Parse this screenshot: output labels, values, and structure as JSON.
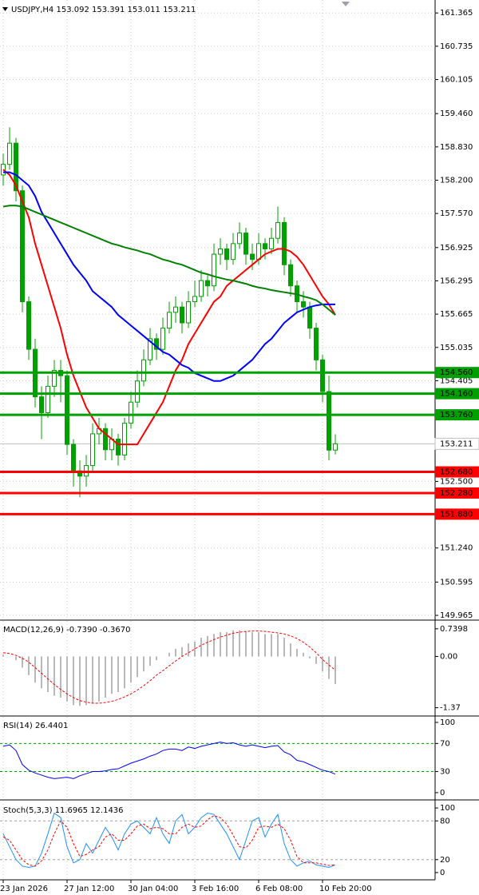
{
  "chart_data": [
    {
      "type": "candlestick",
      "title": "USDJPY,H4  153.092 153.391 153.011 153.211",
      "ylim": [
        149.89,
        161.61
      ],
      "yticks": [
        161.365,
        160.735,
        160.105,
        {
          "value": 159.46,
          "label": "159.460"
        },
        {
          "value": 158.83,
          "label": "158.830"
        },
        {
          "value": 158.2,
          "label": "158.200"
        },
        {
          "value": 157.57,
          "label": "157.570"
        },
        156.925,
        156.295,
        155.665,
        155.035,
        154.405,
        {
          "value": 152.5,
          "label": "152.500"
        },
        {
          "value": 151.24,
          "label": "151.240"
        },
        150.595,
        149.965
      ],
      "grid": true,
      "up_color": "#00a000",
      "down_color": "#00a000",
      "ohlc": [
        [
          158.3,
          158.7,
          158.1,
          158.5
        ],
        [
          158.5,
          159.2,
          158.4,
          158.9
        ],
        [
          158.9,
          159.0,
          157.8,
          158.0
        ],
        [
          158.0,
          158.1,
          155.7,
          155.9
        ],
        [
          155.9,
          156.0,
          154.8,
          155.0
        ],
        [
          155.0,
          155.2,
          153.9,
          154.1
        ],
        [
          154.1,
          154.3,
          153.3,
          153.8
        ],
        [
          153.8,
          154.5,
          153.7,
          154.3
        ],
        [
          154.3,
          154.8,
          154.1,
          154.6
        ],
        [
          154.6,
          154.8,
          154.0,
          154.5
        ],
        [
          154.5,
          154.6,
          153.0,
          153.2
        ],
        [
          153.2,
          153.3,
          152.4,
          152.7
        ],
        [
          152.7,
          152.9,
          152.2,
          152.6
        ],
        [
          152.6,
          153.0,
          152.4,
          152.8
        ],
        [
          152.8,
          153.6,
          152.7,
          153.4
        ],
        [
          153.4,
          153.7,
          153.2,
          153.5
        ],
        [
          153.5,
          153.6,
          152.9,
          153.1
        ],
        [
          153.1,
          153.5,
          152.9,
          153.3
        ],
        [
          153.3,
          153.4,
          152.8,
          153.0
        ],
        [
          153.0,
          153.7,
          152.9,
          153.6
        ],
        [
          153.6,
          154.2,
          153.5,
          154.0
        ],
        [
          154.0,
          154.6,
          153.9,
          154.4
        ],
        [
          154.4,
          155.0,
          154.3,
          154.8
        ],
        [
          154.8,
          155.4,
          154.7,
          155.2
        ],
        [
          155.2,
          155.3,
          154.8,
          155.0
        ],
        [
          155.0,
          155.6,
          154.9,
          155.4
        ],
        [
          155.4,
          155.9,
          155.3,
          155.7
        ],
        [
          155.7,
          156.0,
          155.5,
          155.8
        ],
        [
          155.8,
          155.9,
          155.3,
          155.5
        ],
        [
          155.5,
          156.1,
          155.4,
          155.9
        ],
        [
          155.9,
          156.3,
          155.8,
          156.0
        ],
        [
          156.0,
          156.5,
          155.9,
          156.3
        ],
        [
          156.3,
          156.4,
          156.0,
          156.2
        ],
        [
          156.2,
          157.0,
          156.1,
          156.8
        ],
        [
          156.8,
          157.1,
          156.6,
          156.9
        ],
        [
          156.9,
          157.0,
          156.5,
          156.7
        ],
        [
          156.7,
          157.2,
          156.6,
          157.0
        ],
        [
          157.0,
          157.4,
          156.9,
          157.2
        ],
        [
          157.2,
          157.3,
          156.6,
          156.8
        ],
        [
          156.8,
          157.0,
          156.5,
          156.7
        ],
        [
          156.7,
          157.2,
          156.6,
          157.0
        ],
        [
          157.0,
          157.1,
          156.7,
          156.9
        ],
        [
          156.9,
          157.3,
          156.8,
          157.1
        ],
        [
          157.1,
          157.7,
          157.0,
          157.4
        ],
        [
          157.4,
          157.5,
          156.4,
          156.6
        ],
        [
          156.6,
          156.7,
          156.0,
          156.2
        ],
        [
          156.2,
          156.3,
          155.7,
          155.9
        ],
        [
          155.9,
          156.1,
          155.6,
          155.8
        ],
        [
          155.8,
          155.9,
          155.2,
          155.4
        ],
        [
          155.4,
          155.5,
          154.6,
          154.8
        ],
        [
          154.8,
          154.9,
          154.0,
          154.2
        ],
        [
          154.2,
          154.5,
          152.9,
          153.092
        ],
        [
          153.092,
          153.391,
          153.011,
          153.211
        ]
      ],
      "lines": [
        {
          "color": "#ff0000",
          "values": [
            158.4,
            158.3,
            158.1,
            157.8,
            157.5,
            157.0,
            156.6,
            156.2,
            155.8,
            155.4,
            154.9,
            154.5,
            154.2,
            153.9,
            153.7,
            153.5,
            153.4,
            153.3,
            153.2,
            153.2,
            153.2,
            153.2,
            153.4,
            153.6,
            153.8,
            154.0,
            154.3,
            154.6,
            154.8,
            155.1,
            155.3,
            155.5,
            155.7,
            155.9,
            156.0,
            156.2,
            156.3,
            156.4,
            156.5,
            156.6,
            156.7,
            156.8,
            156.85,
            156.9,
            156.9,
            156.85,
            156.75,
            156.6,
            156.4,
            156.2,
            156.0,
            155.85,
            155.65
          ]
        },
        {
          "color": "#0000ff",
          "values": [
            158.35,
            158.35,
            158.3,
            158.2,
            158.1,
            157.9,
            157.6,
            157.4,
            157.2,
            157.0,
            156.8,
            156.6,
            156.45,
            156.3,
            156.1,
            156.0,
            155.9,
            155.8,
            155.65,
            155.55,
            155.45,
            155.35,
            155.25,
            155.15,
            155.05,
            154.95,
            154.9,
            154.8,
            154.7,
            154.65,
            154.55,
            154.5,
            154.45,
            154.4,
            154.4,
            154.45,
            154.5,
            154.6,
            154.7,
            154.8,
            154.95,
            155.1,
            155.2,
            155.35,
            155.5,
            155.6,
            155.7,
            155.75,
            155.8,
            155.83,
            155.85,
            155.85,
            155.85
          ]
        },
        {
          "color": "#008000",
          "values": [
            157.7,
            157.72,
            157.72,
            157.7,
            157.65,
            157.6,
            157.55,
            157.5,
            157.45,
            157.4,
            157.35,
            157.3,
            157.25,
            157.2,
            157.15,
            157.1,
            157.05,
            157.0,
            156.97,
            156.93,
            156.9,
            156.87,
            156.83,
            156.8,
            156.75,
            156.7,
            156.67,
            156.63,
            156.6,
            156.55,
            156.5,
            156.45,
            156.42,
            156.38,
            156.35,
            156.32,
            156.3,
            156.27,
            156.24,
            156.2,
            156.17,
            156.15,
            156.12,
            156.1,
            156.08,
            156.06,
            156.04,
            156.0,
            155.97,
            155.93,
            155.85,
            155.75,
            155.65
          ]
        }
      ],
      "levels": [
        {
          "value": 154.56,
          "label": "154.560",
          "color": "#00a000"
        },
        {
          "value": 154.16,
          "label": "154.160",
          "color": "#00a000"
        },
        {
          "value": 153.76,
          "label": "153.760",
          "color": "#00a000"
        },
        {
          "value": 152.68,
          "label": "152.680",
          "color": "#ff0000"
        },
        {
          "value": 152.28,
          "label": "152.280",
          "color": "#ff0000"
        },
        {
          "value": 151.88,
          "label": "151.880",
          "color": "#ff0000"
        }
      ],
      "last": {
        "value": 153.211,
        "label": "153.211",
        "color": "#c0c0c0"
      }
    },
    {
      "type": "macd",
      "title": "MACD(12,26,9) -0.7390 -0.3670",
      "ylim": [
        -1.57,
        0.95
      ],
      "yticks": [
        0.7398,
        {
          "value": 0,
          "label": "0.00"
        },
        -1.37
      ],
      "histogram": {
        "color": "#b8b8b8",
        "values": [
          0.05,
          0.0,
          -0.1,
          -0.3,
          -0.5,
          -0.7,
          -0.85,
          -0.95,
          -1.05,
          -1.1,
          -1.2,
          -1.3,
          -1.32,
          -1.3,
          -1.25,
          -1.2,
          -1.1,
          -1.0,
          -0.95,
          -0.85,
          -0.7,
          -0.55,
          -0.4,
          -0.25,
          -0.1,
          0.0,
          0.1,
          0.2,
          0.25,
          0.35,
          0.4,
          0.5,
          0.55,
          0.6,
          0.65,
          0.65,
          0.7,
          0.7,
          0.68,
          0.65,
          0.65,
          0.6,
          0.6,
          0.6,
          0.5,
          0.35,
          0.2,
          0.1,
          -0.05,
          -0.2,
          -0.4,
          -0.6,
          -0.739
        ]
      },
      "signal": {
        "color": "#ff0000",
        "values": [
          0.1,
          0.08,
          0.03,
          -0.05,
          -0.15,
          -0.3,
          -0.45,
          -0.6,
          -0.75,
          -0.88,
          -1.0,
          -1.1,
          -1.18,
          -1.22,
          -1.25,
          -1.25,
          -1.23,
          -1.2,
          -1.15,
          -1.08,
          -1.0,
          -0.9,
          -0.78,
          -0.65,
          -0.5,
          -0.38,
          -0.25,
          -0.12,
          0.0,
          0.1,
          0.2,
          0.3,
          0.38,
          0.45,
          0.52,
          0.57,
          0.62,
          0.65,
          0.67,
          0.68,
          0.68,
          0.67,
          0.65,
          0.63,
          0.6,
          0.55,
          0.48,
          0.38,
          0.25,
          0.1,
          -0.08,
          -0.23,
          -0.367
        ]
      }
    },
    {
      "type": "rsi",
      "title": "RSI(14) 26.4401",
      "ylim": [
        -9.2,
        108
      ],
      "yticks": [
        100,
        70,
        30,
        0
      ],
      "levels": [
        70,
        30
      ],
      "level_color": "#00a000",
      "main": {
        "color": "#0000ff",
        "values": [
          66,
          68,
          60,
          40,
          32,
          28,
          25,
          22,
          20,
          21,
          22,
          20,
          24,
          27,
          30,
          30,
          31,
          33,
          34,
          38,
          42,
          45,
          48,
          52,
          55,
          60,
          62,
          62,
          60,
          65,
          63,
          66,
          68,
          70,
          72,
          70,
          71,
          68,
          66,
          68,
          66,
          64,
          66,
          67,
          58,
          54,
          46,
          44,
          40,
          36,
          32,
          30,
          26.4401
        ]
      }
    },
    {
      "type": "stochastic",
      "title": "Stoch(5,3,3) 11.6965 12.1436",
      "ylim": [
        -10,
        111.25
      ],
      "yticks": [
        100,
        80,
        20,
        0
      ],
      "levels": [
        80,
        20
      ],
      "level_color": "#a0a0a0",
      "main": {
        "color": "#1e90ff",
        "values": [
          60,
          40,
          20,
          10,
          8,
          10,
          30,
          60,
          92,
          85,
          40,
          15,
          20,
          45,
          30,
          50,
          70,
          55,
          35,
          60,
          75,
          80,
          70,
          60,
          85,
          60,
          45,
          80,
          90,
          60,
          70,
          85,
          92,
          90,
          75,
          60,
          40,
          20,
          50,
          80,
          85,
          55,
          75,
          90,
          45,
          20,
          10,
          15,
          18,
          12,
          10,
          8,
          11.6965
        ]
      },
      "signal": {
        "color": "#ff0000",
        "values": [
          55,
          50,
          35,
          20,
          12,
          10,
          18,
          35,
          60,
          80,
          70,
          45,
          25,
          28,
          35,
          40,
          55,
          60,
          50,
          50,
          60,
          72,
          75,
          68,
          70,
          68,
          60,
          60,
          70,
          75,
          70,
          72,
          82,
          88,
          85,
          75,
          58,
          40,
          38,
          50,
          70,
          72,
          70,
          75,
          68,
          50,
          25,
          15,
          15,
          15,
          13,
          11,
          12.1436
        ]
      },
      "categories": [
        "23 Jan 2026",
        null,
        null,
        null,
        null,
        null,
        null,
        null,
        null,
        null,
        "27 Jan 12:00",
        null,
        null,
        null,
        null,
        null,
        null,
        null,
        null,
        null,
        "30 Jan 04:00",
        null,
        null,
        null,
        null,
        null,
        null,
        null,
        null,
        null,
        "3 Feb 16:00",
        null,
        null,
        null,
        null,
        null,
        null,
        null,
        null,
        null,
        "6 Feb 08:00",
        null,
        null,
        null,
        null,
        null,
        null,
        null,
        null,
        null,
        "10 Feb 20:00",
        null,
        null
      ]
    }
  ]
}
